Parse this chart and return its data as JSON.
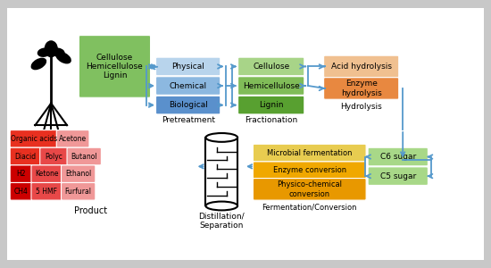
{
  "bg_outer": "#c8c8c8",
  "bg_inner": "#f0f0f5",
  "biomass_labels": [
    "Cellulose",
    "Hemicellulose",
    "Lignin"
  ],
  "biomass_color": "#80c060",
  "pretreat_labels": [
    "Physical",
    "Chemical",
    "Biological"
  ],
  "pretreat_colors": [
    "#b8d4ec",
    "#8cb8e0",
    "#5a90cc"
  ],
  "frac_labels": [
    "Cellulose",
    "Hemicellulose",
    "Lignin"
  ],
  "frac_colors": [
    "#a8d488",
    "#80bc58",
    "#58a030"
  ],
  "hydro_labels": [
    "Acid hydrolysis",
    "Enzyme\nhydrolysis"
  ],
  "hydro_colors": [
    "#f0c090",
    "#e88840"
  ],
  "sugar_labels": [
    "C6 sugar",
    "C5 sugar"
  ],
  "sugar_color": "#a8d888",
  "ferm_labels": [
    "Microbial fermentation",
    "Enzyme conversion",
    "Physico-chemical\nconversion"
  ],
  "ferm_colors": [
    "#e8cc50",
    "#f0a800",
    "#e89800"
  ],
  "prod_rows": [
    [
      [
        "Organic acids",
        "#e83020",
        0.092
      ],
      [
        "Acetone",
        "#f09898",
        0.062
      ]
    ],
    [
      [
        "Diacid",
        "#e83020",
        0.058
      ],
      [
        "Polyc",
        "#e84848",
        0.052
      ],
      [
        "Butanol",
        "#f09898",
        0.065
      ]
    ],
    [
      [
        "H2",
        "#cc0000",
        0.04
      ],
      [
        "Ketone",
        "#e84848",
        0.058
      ],
      [
        "Ethanol",
        "#f09898",
        0.065
      ]
    ],
    [
      [
        "CH4",
        "#cc0000",
        0.04
      ],
      [
        "5 HMF",
        "#e84848",
        0.058
      ],
      [
        "Furfural",
        "#f09898",
        0.065
      ]
    ]
  ],
  "arrow_color": "#5599cc"
}
